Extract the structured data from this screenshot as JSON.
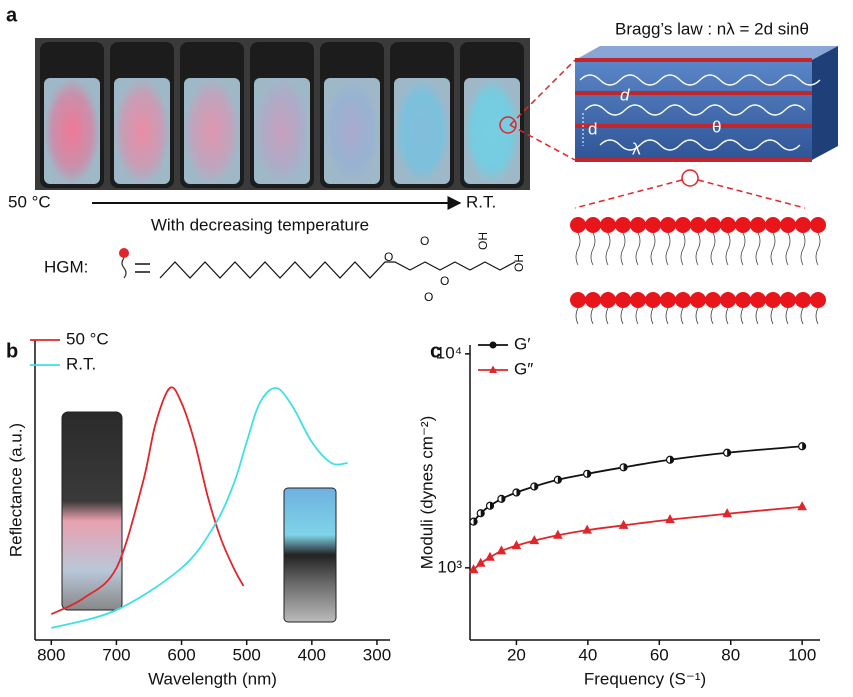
{
  "panel_labels": [
    "a",
    "b",
    "c"
  ],
  "panel_a": {
    "start_label": "50 °C",
    "end_label": "R.T.",
    "arrow_caption": "With decreasing temperature",
    "molecule_label": "HGM:",
    "structure_atoms": [
      "O",
      "O",
      "O",
      "O",
      "OH",
      "OH"
    ],
    "bragg_title": "Bragg’s law : nλ = 2d sinθ",
    "diagram_labels": [
      "d",
      "d",
      "λ",
      "θ"
    ]
  },
  "chart_data": [
    {
      "type": "line",
      "xlabel": "Wavelength (nm)",
      "ylabel": "Reflectance (a.u.)",
      "xlim": [
        825,
        280
      ],
      "ylim": [
        0,
        1
      ],
      "xticks": [
        800,
        700,
        600,
        500,
        400,
        300
      ],
      "series": [
        {
          "name": "50 °C",
          "color": "#e0262a",
          "x": [
            800,
            750,
            700,
            660,
            640,
            618,
            600,
            580,
            560,
            540,
            520,
            505
          ],
          "values": [
            0.086,
            0.14,
            0.24,
            0.52,
            0.72,
            0.84,
            0.79,
            0.66,
            0.48,
            0.34,
            0.24,
            0.18
          ]
        },
        {
          "name": "R.T.",
          "color": "#3fe0e5",
          "x": [
            800,
            700,
            600,
            550,
            520,
            500,
            480,
            455,
            430,
            400,
            370,
            345
          ],
          "values": [
            0.04,
            0.1,
            0.24,
            0.38,
            0.52,
            0.66,
            0.79,
            0.84,
            0.78,
            0.66,
            0.59,
            0.59
          ]
        }
      ]
    },
    {
      "type": "scatter-line",
      "xlabel": "Frequency (S⁻¹)",
      "ylabel": "Moduli (dynes cm⁻²)",
      "log_y": true,
      "xlim": [
        7,
        105
      ],
      "ylim": [
        460,
        11000
      ],
      "xticks": [
        20,
        40,
        60,
        80,
        100
      ],
      "yticks": [
        {
          "value": 1000,
          "label": "10³"
        },
        {
          "value": 10000,
          "label": "10⁴"
        }
      ],
      "series": [
        {
          "name": "G′",
          "color": "#111111",
          "marker": "circle",
          "x": [
            8,
            10,
            12.6,
            15.8,
            20,
            25,
            31.6,
            39.8,
            50,
            63,
            79,
            100
          ],
          "values": [
            1644,
            1800,
            1950,
            2100,
            2250,
            2400,
            2580,
            2750,
            2950,
            3200,
            3450,
            3700
          ]
        },
        {
          "name": "G″",
          "color": "#e0262a",
          "marker": "triangle",
          "x": [
            8,
            10,
            12.6,
            15.8,
            20,
            25,
            31.6,
            39.8,
            50,
            63,
            79,
            100
          ],
          "values": [
            980,
            1050,
            1120,
            1200,
            1270,
            1340,
            1420,
            1500,
            1580,
            1680,
            1790,
            1930
          ]
        }
      ]
    }
  ]
}
